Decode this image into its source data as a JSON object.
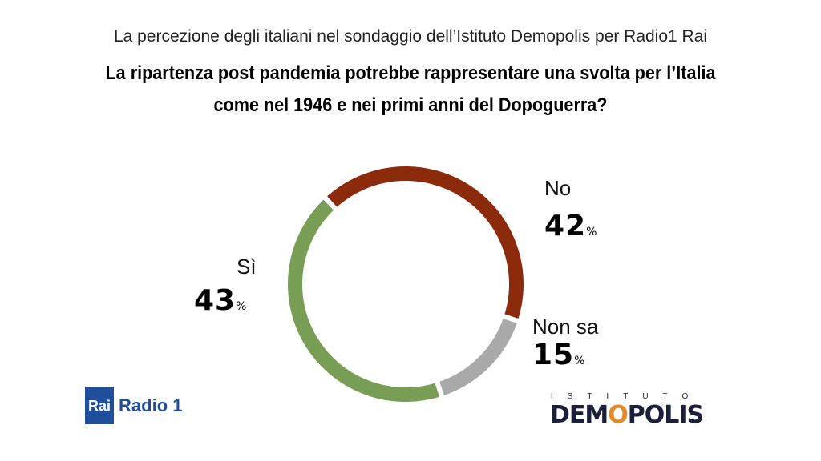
{
  "header": {
    "subtitle": "La percezione degli italiani nel sondaggio dell’Istituto Demopolis per Radio1 Rai",
    "title_line1": "La ripartenza post pandemia potrebbe rappresentare una svolta per l’Italia",
    "title_line2": "come nel 1946 e nei primi anni del Dopoguerra?"
  },
  "chart_data": {
    "type": "pie",
    "variant": "donut",
    "title": "La ripartenza post pandemia potrebbe rappresentare una svolta per l’Italia come nel 1946 e nei primi anni del Dopoguerra?",
    "slices": [
      {
        "label": "No",
        "value": 42,
        "display": "42",
        "color": "#8c2a0c"
      },
      {
        "label": "Non sa",
        "value": 15,
        "display": "15",
        "color": "#a9a9a9"
      },
      {
        "label": "Sì",
        "value": 43,
        "display": "43",
        "color": "#789d55"
      }
    ],
    "unit": "%"
  },
  "logos": {
    "rai_box": "Rai",
    "rai_radio": "Radio 1",
    "demopolis_top": "ISTITUTO",
    "demopolis_pre": "DEM",
    "demopolis_o": "O",
    "demopolis_post": "POLIS"
  }
}
